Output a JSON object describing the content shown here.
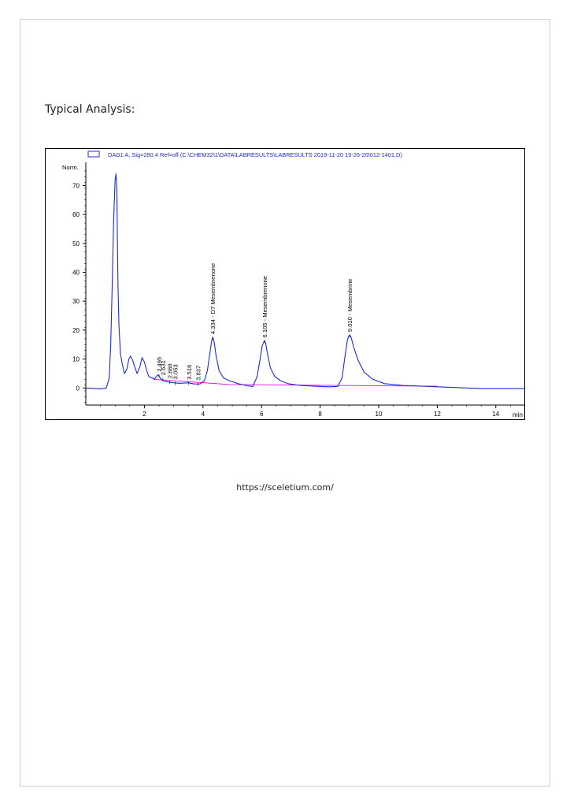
{
  "heading": "Typical Analysis:",
  "footer": {
    "url": "https://sceletium.com/"
  },
  "colors": {
    "trace": "#1f2bd6",
    "baseline": "#e600e6",
    "axis": "#000000",
    "legend_text": "#1f2bd6"
  },
  "chart_data": {
    "type": "line",
    "legend": "DAD1 A, Sig=280,4 Ref=off (C:\\CHEM32\\1\\DATA\\LABRESULTS\\LABRESULTS 2019-11-20 15-26-20\\012-1401.D)",
    "ylabel": "Norm.",
    "xlabel": "min",
    "xlim": [
      0,
      15
    ],
    "ylim": [
      -7,
      78
    ],
    "xticks": [
      2,
      4,
      6,
      8,
      10,
      12,
      14
    ],
    "yticks": [
      0,
      10,
      20,
      30,
      40,
      50,
      60,
      70
    ],
    "grid": false,
    "series": [
      {
        "x": [
          0.0,
          0.5,
          0.7,
          0.8,
          0.85,
          0.9,
          0.95,
          1.0,
          1.03,
          1.06,
          1.08,
          1.1,
          1.13,
          1.18,
          1.25,
          1.32,
          1.4,
          1.47,
          1.53,
          1.6,
          1.68,
          1.75,
          1.85,
          1.92,
          2.0,
          2.08,
          2.15,
          2.25,
          2.35,
          2.45,
          2.5,
          2.55,
          2.65,
          2.75,
          2.85,
          3.0,
          3.2,
          3.5,
          3.7,
          3.9,
          4.05,
          4.15,
          4.25,
          4.3,
          4.334,
          4.38,
          4.45,
          4.55,
          4.7,
          4.9,
          5.2,
          5.5,
          5.7,
          5.85,
          5.95,
          6.02,
          6.08,
          6.105,
          6.14,
          6.2,
          6.3,
          6.45,
          6.65,
          6.9,
          7.3,
          7.8,
          8.3,
          8.6,
          8.75,
          8.85,
          8.93,
          8.98,
          9.01,
          9.06,
          9.15,
          9.3,
          9.5,
          9.8,
          10.2,
          10.8,
          11.5,
          12.5,
          13.5,
          14.5,
          15.0
        ],
        "values": [
          0.0,
          -0.3,
          0.0,
          3.5,
          15.0,
          35.0,
          58.0,
          72.0,
          74.0,
          68.0,
          50.0,
          35.0,
          22.0,
          12.0,
          8.0,
          5.0,
          6.5,
          10.0,
          11.0,
          9.5,
          7.0,
          5.0,
          7.5,
          10.5,
          9.0,
          6.0,
          4.0,
          3.5,
          3.2,
          4.5,
          4.3,
          3.2,
          2.5,
          2.2,
          2.0,
          1.8,
          1.6,
          1.8,
          1.4,
          1.4,
          2.5,
          6.0,
          13.0,
          16.5,
          17.5,
          16.0,
          11.0,
          6.0,
          3.5,
          2.5,
          1.5,
          0.8,
          0.5,
          4.0,
          10.0,
          14.5,
          16.0,
          16.3,
          15.5,
          12.0,
          7.0,
          4.0,
          2.5,
          1.5,
          0.9,
          0.6,
          0.4,
          0.5,
          3.5,
          11.0,
          16.5,
          18.0,
          18.3,
          17.5,
          14.0,
          9.5,
          5.5,
          3.0,
          1.5,
          0.9,
          0.6,
          0.2,
          -0.2,
          -0.2,
          -0.2
        ]
      }
    ],
    "baseline": {
      "x": [
        2.3,
        4.9,
        12.0
      ],
      "values": [
        3.0,
        1.2,
        0.6
      ]
    },
    "peak_labels": [
      {
        "x": 2.495,
        "label": "2.495",
        "y": 4.5
      },
      {
        "x": 2.631,
        "label": "2.631",
        "y": 3.3
      },
      {
        "x": 2.868,
        "label": "2.868",
        "y": 2.2
      },
      {
        "x": 3.053,
        "label": "3.053",
        "y": 1.9
      },
      {
        "x": 3.516,
        "label": "3.516",
        "y": 1.8
      },
      {
        "x": 3.837,
        "label": "3.837",
        "y": 1.5
      },
      {
        "x": 4.334,
        "label": "4.334 -  D7 Mesembrenone",
        "y": 17.5
      },
      {
        "x": 6.105,
        "label": "6.105 -  Mesembrenone",
        "y": 16.3
      },
      {
        "x": 9.01,
        "label": "9.010 -  Mesembrine",
        "y": 18.3
      }
    ]
  }
}
